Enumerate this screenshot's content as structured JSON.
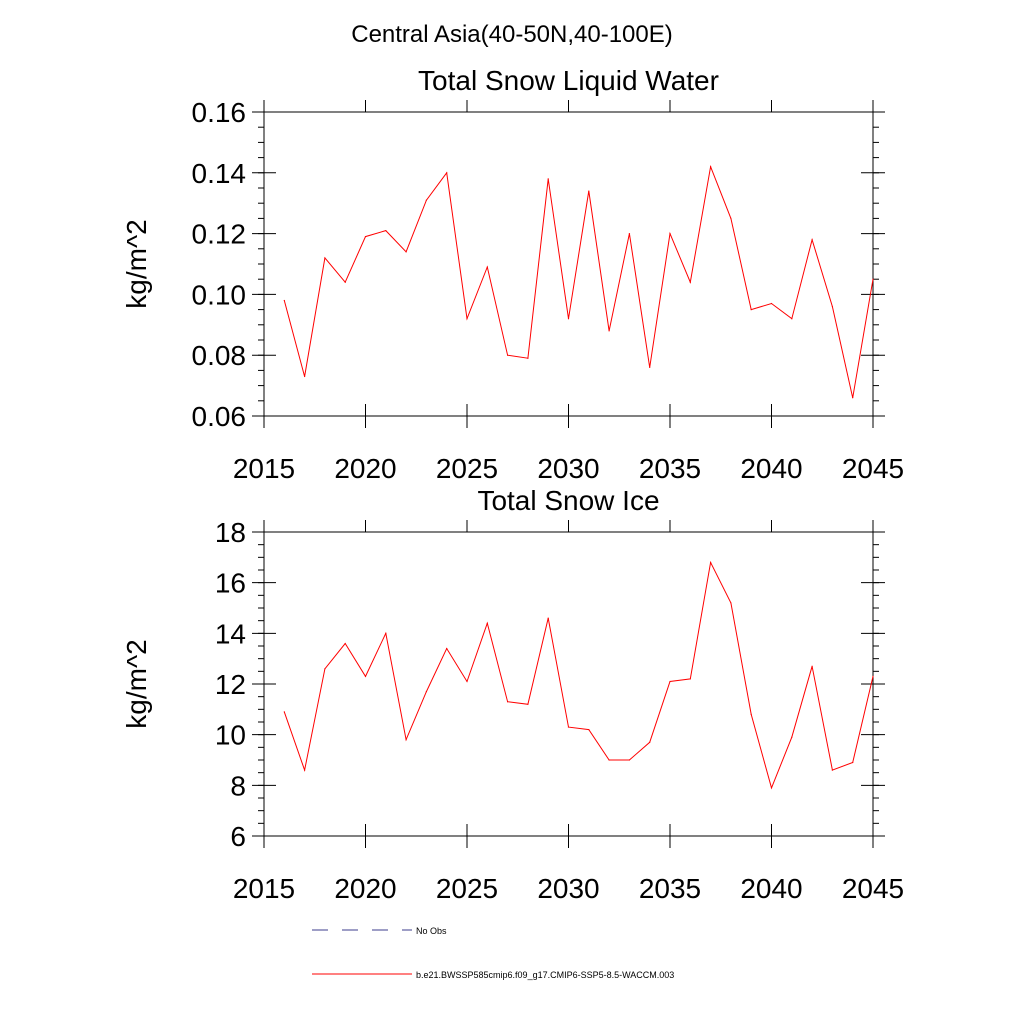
{
  "figure_title": "Central Asia(40-50N,40-100E)",
  "colors": {
    "model": "#ff0000",
    "obs": "#3c3c8c",
    "axis": "#000000"
  },
  "legend": {
    "obs_label": "No Obs",
    "model_label": "b.e21.BWSSP585cmip6.f09_g17.CMIP6-SSP5-8.5-WACCM.003"
  },
  "chart_data": [
    {
      "type": "line",
      "title": "Total Snow Liquid Water",
      "xlabel": "",
      "ylabel": "kg/m^2",
      "xlim": [
        2015,
        2045
      ],
      "ylim": [
        0.06,
        0.16
      ],
      "xticks": [
        2015,
        2020,
        2025,
        2030,
        2035,
        2040,
        2045
      ],
      "yticks": [
        0.06,
        0.08,
        0.1,
        0.12,
        0.14,
        0.16
      ],
      "ytick_labels": [
        "0.06",
        "0.08",
        "0.10",
        "0.12",
        "0.14",
        "0.16"
      ],
      "yminor_step": 0.005,
      "x": [
        2016,
        2017,
        2018,
        2019,
        2020,
        2021,
        2022,
        2023,
        2024,
        2025,
        2026,
        2027,
        2028,
        2029,
        2030,
        2031,
        2032,
        2033,
        2034,
        2035,
        2036,
        2037,
        2038,
        2039,
        2040,
        2041,
        2042,
        2043,
        2044,
        2045
      ],
      "series": [
        {
          "name": "b.e21.BWSSP585cmip6.f09_g17.CMIP6-SSP5-8.5-WACCM.003",
          "values": [
            0.098,
            0.073,
            0.112,
            0.104,
            0.119,
            0.121,
            0.114,
            0.131,
            0.14,
            0.092,
            0.109,
            0.08,
            0.079,
            0.138,
            0.092,
            0.134,
            0.088,
            0.12,
            0.076,
            0.12,
            0.104,
            0.142,
            0.125,
            0.095,
            0.097,
            0.092,
            0.118,
            0.096,
            0.066,
            0.105
          ]
        }
      ]
    },
    {
      "type": "line",
      "title": "Total Snow Ice",
      "xlabel": "",
      "ylabel": "kg/m^2",
      "xlim": [
        2015,
        2045
      ],
      "ylim": [
        6,
        18
      ],
      "xticks": [
        2015,
        2020,
        2025,
        2030,
        2035,
        2040,
        2045
      ],
      "yticks": [
        6,
        8,
        10,
        12,
        14,
        16,
        18
      ],
      "ytick_labels": [
        "6",
        "8",
        "10",
        "12",
        "14",
        "16",
        "18"
      ],
      "yminor_step": 0.5,
      "x": [
        2016,
        2017,
        2018,
        2019,
        2020,
        2021,
        2022,
        2023,
        2024,
        2025,
        2026,
        2027,
        2028,
        2029,
        2030,
        2031,
        2032,
        2033,
        2034,
        2035,
        2036,
        2037,
        2038,
        2039,
        2040,
        2041,
        2042,
        2043,
        2044,
        2045
      ],
      "series": [
        {
          "name": "b.e21.BWSSP585cmip6.f09_g17.CMIP6-SSP5-8.5-WACCM.003",
          "values": [
            10.9,
            8.6,
            12.6,
            13.6,
            12.3,
            14.0,
            9.8,
            11.7,
            13.4,
            12.1,
            14.4,
            11.3,
            11.2,
            14.6,
            10.3,
            10.2,
            9.0,
            9.0,
            9.7,
            12.1,
            12.2,
            16.8,
            15.2,
            10.8,
            7.9,
            9.9,
            12.7,
            8.6,
            8.9,
            12.3
          ]
        }
      ]
    }
  ]
}
